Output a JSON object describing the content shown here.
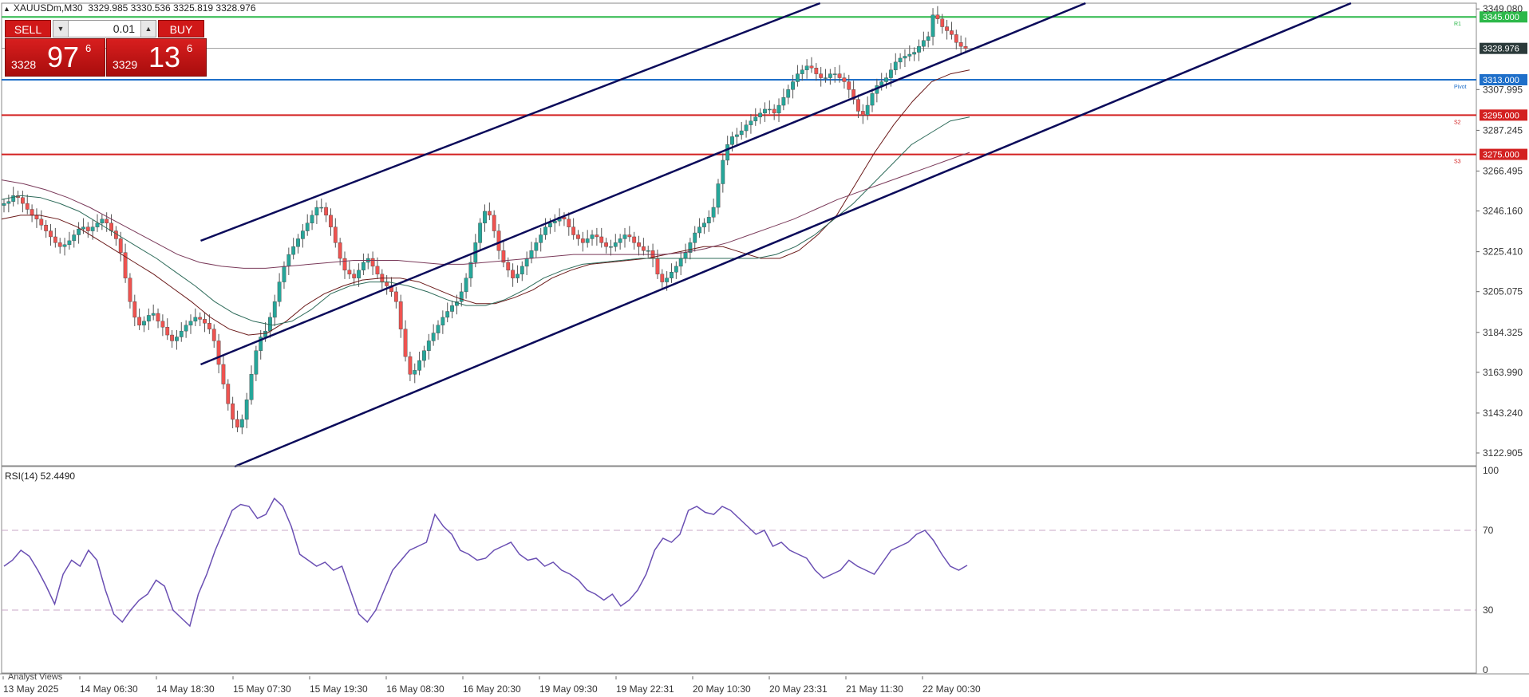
{
  "header": {
    "symbol": "XAUUSDm,M30",
    "ohlc": "3329.985 3330.536 3325.819 3328.976"
  },
  "trade_panel": {
    "sell_label": "SELL",
    "buy_label": "BUY",
    "lot": "0.01",
    "sell_price_small": "3328",
    "sell_price_big": "97",
    "sell_price_sup": "6",
    "buy_price_small": "3329",
    "buy_price_big": "13",
    "buy_price_sup": "6"
  },
  "footer": {
    "analyst_views": "Analyst Views"
  },
  "chart_data": {
    "type": "candlestick",
    "symbol": "XAUUSDm",
    "timeframe": "M30",
    "x_tick_labels": [
      "13 May 2025",
      "14 May 06:30",
      "14 May 18:30",
      "15 May 07:30",
      "15 May 19:30",
      "16 May 08:30",
      "16 May 20:30",
      "19 May 09:30",
      "19 May 22:31",
      "20 May 10:30",
      "20 May 23:31",
      "21 May 11:30",
      "22 May 00:30"
    ],
    "y_tick_labels": [
      "3349.080",
      "3307.995",
      "3287.245",
      "3266.495",
      "3246.160",
      "3225.410",
      "3205.075",
      "3184.325",
      "3163.990",
      "3143.240",
      "3122.905"
    ],
    "ylim": [
      3116,
      3352
    ],
    "current_price": 3328.976,
    "levels": [
      {
        "name": "R1",
        "value": 3345.0,
        "label": "3345.000",
        "color": "#2db84a"
      },
      {
        "name": "Pivot",
        "value": 3313.0,
        "label": "3313.000",
        "color": "#1e6fc9"
      },
      {
        "name": "S2",
        "value": 3295.0,
        "label": "3295.000",
        "color": "#d32020"
      },
      {
        "name": "S3",
        "value": 3275.0,
        "label": "3275.000",
        "color": "#d32020"
      }
    ],
    "close_path": [
      3250,
      3251,
      3254,
      3253,
      3250,
      3247,
      3244,
      3242,
      3239,
      3236,
      3233,
      3230,
      3228,
      3229,
      3231,
      3234,
      3237,
      3238,
      3236,
      3238,
      3240,
      3242,
      3240,
      3236,
      3232,
      3225,
      3212,
      3200,
      3192,
      3188,
      3190,
      3193,
      3194,
      3190,
      3187,
      3183,
      3180,
      3182,
      3185,
      3188,
      3190,
      3192,
      3191,
      3189,
      3186,
      3180,
      3168,
      3158,
      3148,
      3140,
      3136,
      3140,
      3150,
      3163,
      3175,
      3182,
      3185,
      3192,
      3200,
      3210,
      3218,
      3224,
      3228,
      3232,
      3236,
      3240,
      3244,
      3248,
      3248,
      3244,
      3238,
      3230,
      3222,
      3216,
      3214,
      3212,
      3216,
      3220,
      3222,
      3218,
      3214,
      3210,
      3208,
      3205,
      3200,
      3186,
      3172,
      3163,
      3165,
      3170,
      3175,
      3180,
      3184,
      3188,
      3192,
      3195,
      3198,
      3200,
      3205,
      3212,
      3220,
      3230,
      3240,
      3246,
      3244,
      3236,
      3226,
      3220,
      3216,
      3212,
      3214,
      3218,
      3222,
      3226,
      3230,
      3234,
      3238,
      3240,
      3241,
      3243,
      3242,
      3238,
      3234,
      3232,
      3230,
      3232,
      3234,
      3233,
      3230,
      3228,
      3228,
      3230,
      3232,
      3234,
      3233,
      3230,
      3228,
      3226,
      3226,
      3222,
      3214,
      3210,
      3212,
      3215,
      3218,
      3222,
      3225,
      3230,
      3235,
      3238,
      3240,
      3243,
      3248,
      3260,
      3272,
      3280,
      3284,
      3285,
      3287,
      3290,
      3292,
      3294,
      3296,
      3298,
      3298,
      3296,
      3300,
      3304,
      3308,
      3312,
      3316,
      3318,
      3320,
      3319,
      3316,
      3314,
      3314,
      3316,
      3316,
      3314,
      3312,
      3308,
      3303,
      3297,
      3295,
      3300,
      3306,
      3310,
      3312,
      3314,
      3318,
      3322,
      3324,
      3325,
      3326,
      3327,
      3330,
      3333,
      3335,
      3346,
      3344,
      3340,
      3338,
      3336,
      3332,
      3330,
      3328.976
    ],
    "moving_averages": [
      {
        "name": "MA fast",
        "color": "#6b1a1a",
        "values": [
          3242,
          3244,
          3244,
          3242,
          3238,
          3232,
          3226,
          3220,
          3214,
          3207,
          3200,
          3192,
          3186,
          3183,
          3184,
          3190,
          3198,
          3204,
          3208,
          3211,
          3212,
          3212,
          3210,
          3206,
          3202,
          3199,
          3199,
          3202,
          3206,
          3212,
          3216,
          3219,
          3220,
          3221,
          3222,
          3224,
          3226,
          3228,
          3228,
          3225,
          3222,
          3222,
          3226,
          3234,
          3244,
          3260,
          3276,
          3290,
          3302,
          3312,
          3316,
          3318
        ]
      },
      {
        "name": "MA mid",
        "color": "#2e6b5a",
        "values": [
          3252,
          3254,
          3253,
          3250,
          3246,
          3240,
          3234,
          3228,
          3222,
          3215,
          3208,
          3200,
          3194,
          3190,
          3188,
          3190,
          3196,
          3204,
          3208,
          3210,
          3210,
          3208,
          3205,
          3201,
          3198,
          3198,
          3201,
          3206,
          3212,
          3216,
          3219,
          3220,
          3221,
          3222,
          3222,
          3222,
          3222,
          3222,
          3222,
          3222,
          3224,
          3228,
          3234,
          3242,
          3250,
          3260,
          3270,
          3280,
          3286,
          3292,
          3294
        ]
      },
      {
        "name": "MA slow",
        "color": "#7a3a5a",
        "values": [
          3262,
          3260,
          3257,
          3253,
          3248,
          3242,
          3236,
          3230,
          3224,
          3220,
          3218,
          3217,
          3217,
          3218,
          3219,
          3220,
          3221,
          3221,
          3221,
          3220,
          3219,
          3219,
          3220,
          3221,
          3222,
          3223,
          3224,
          3224,
          3224,
          3224,
          3224,
          3225,
          3227,
          3230,
          3234,
          3238,
          3242,
          3247,
          3252,
          3256,
          3260,
          3264,
          3268,
          3272,
          3276
        ]
      }
    ],
    "channel_lines": [
      {
        "x0": 0.135,
        "y0": 3231,
        "x1": 0.555,
        "y1": 3352
      },
      {
        "x0": 0.135,
        "y0": 3168,
        "x1": 0.735,
        "y1": 3352
      },
      {
        "x0": 0.158,
        "y0": 3116,
        "x1": 0.915,
        "y1": 3352
      }
    ],
    "rsi": {
      "label": "RSI(14) 52.4490",
      "period": 14,
      "last": 52.449,
      "levels": [
        70,
        30
      ],
      "y_tick_labels": [
        "100",
        "70",
        "30",
        "0"
      ],
      "ylim": [
        0,
        100
      ],
      "values": [
        52,
        55,
        60,
        57,
        50,
        42,
        33,
        48,
        55,
        52,
        60,
        55,
        40,
        28,
        24,
        30,
        35,
        38,
        45,
        42,
        30,
        26,
        22,
        38,
        48,
        60,
        70,
        80,
        83,
        82,
        76,
        78,
        86,
        82,
        72,
        58,
        55,
        52,
        54,
        50,
        52,
        40,
        28,
        24,
        30,
        40,
        50,
        55,
        60,
        62,
        64,
        78,
        72,
        68,
        60,
        58,
        55,
        56,
        60,
        62,
        64,
        58,
        55,
        56,
        52,
        54,
        50,
        48,
        45,
        40,
        38,
        35,
        38,
        32,
        35,
        40,
        48,
        60,
        66,
        64,
        68,
        80,
        82,
        79,
        78,
        82,
        80,
        76,
        72,
        68,
        70,
        62,
        64,
        60,
        58,
        56,
        50,
        46,
        48,
        50,
        55,
        52,
        50,
        48,
        54,
        60,
        62,
        64,
        68,
        70,
        65,
        58,
        52,
        50,
        52.449
      ]
    }
  }
}
